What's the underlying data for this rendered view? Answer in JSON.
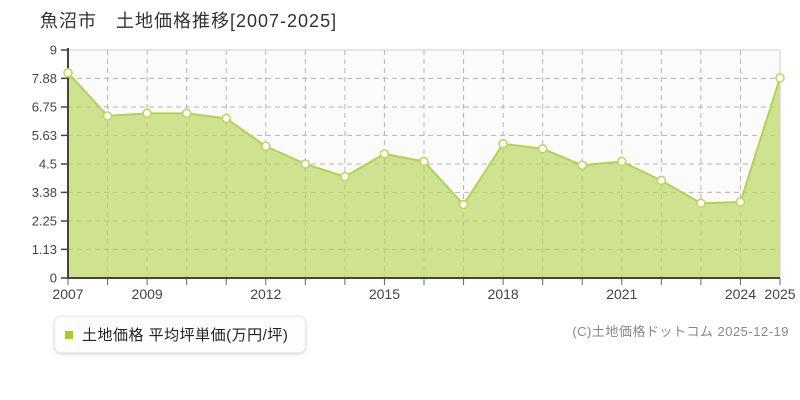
{
  "chart_data": {
    "type": "area",
    "title": "魚沼市　土地価格推移[2007-2025]",
    "x": [
      2007,
      2008,
      2009,
      2010,
      2011,
      2012,
      2013,
      2014,
      2015,
      2016,
      2017,
      2018,
      2019,
      2020,
      2021,
      2022,
      2023,
      2024,
      2025
    ],
    "values": [
      8.1,
      6.4,
      6.5,
      6.5,
      6.3,
      5.2,
      4.5,
      4.0,
      4.9,
      4.6,
      2.9,
      5.3,
      5.1,
      4.45,
      4.6,
      3.85,
      2.95,
      3.0,
      7.9
    ],
    "series_name": "土地価格 平均坪単価(万円/坪)",
    "unit": "万円/坪",
    "ylim": [
      0,
      9
    ],
    "yticks": [
      {
        "value": 0,
        "label": "0"
      },
      {
        "value": 1.13,
        "label": "1.13"
      },
      {
        "value": 2.25,
        "label": "2.25"
      },
      {
        "value": 3.38,
        "label": "3.38"
      },
      {
        "value": 4.5,
        "label": "4.5"
      },
      {
        "value": 5.63,
        "label": "5.63"
      },
      {
        "value": 6.75,
        "label": "6.75"
      },
      {
        "value": 7.88,
        "label": "7.88"
      },
      {
        "value": 9,
        "label": "9"
      }
    ],
    "xticks_labeled": [
      2007,
      2009,
      2012,
      2015,
      2018,
      2021,
      2024,
      2025
    ],
    "grid": true,
    "legend_position": "bottom-left",
    "colors": {
      "line": "#b2d256",
      "fill": "rgba(183,213,88,0.66)",
      "marker_fill": "#ffffff",
      "marker_stroke": "#bdd75f",
      "legend_square": "#a6ce26",
      "grid": "#b5b5b5",
      "axis": "#444444",
      "tick_label": "#444444",
      "plot_bg": "#fbfbfb",
      "plot_border": "#cccccc"
    }
  },
  "legend": {
    "label": "土地価格 平均坪単価(万円/坪)"
  },
  "footer": {
    "copyright": "(C)土地価格ドットコム 2025-12-19"
  }
}
